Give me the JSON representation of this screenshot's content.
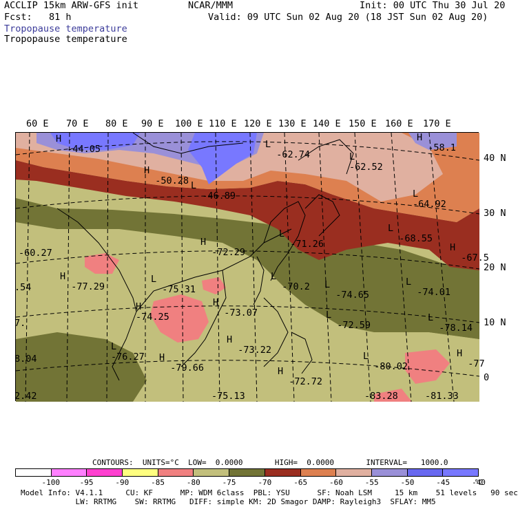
{
  "header": {
    "title_left": "ACCLIP 15km ARW-GFS init",
    "forecast": "Fcst:   81 h",
    "center": "NCAR/MMM",
    "init": "Init: 00 UTC Thu 30 Jul 20",
    "valid": "Valid: 09 UTC Sun 02 Aug 20 (18 JST Sun 02 Aug 20)",
    "field_1": "Tropopause temperature",
    "field_2": "Tropopause temperature"
  },
  "map": {
    "lon_labels": [
      "60 E",
      "70 E",
      "80 E",
      "90 E",
      "100 E",
      "110 E",
      "120 E",
      "130 E",
      "140 E",
      "150 E",
      "160 E",
      "170 E"
    ],
    "lat_labels": [
      "40 N",
      "30 N",
      "20 N",
      "10 N",
      "0"
    ],
    "annotations": [
      {
        "letter": "H",
        "value": "-44.05"
      },
      {
        "letter": "H",
        "value": "-50.28"
      },
      {
        "letter": "L",
        "value": "-46.89"
      },
      {
        "letter": "L",
        "value": "-62.74"
      },
      {
        "letter": "L",
        "value": "-62.52"
      },
      {
        "letter": "H",
        "value": "-58.1"
      },
      {
        "letter": "L",
        "value": "-64.92"
      },
      {
        "letter": "L",
        "value": "-68.55"
      },
      {
        "letter": "H",
        "value": "-67.5"
      },
      {
        "letter": "L",
        "value": "-71.26"
      },
      {
        "letter": "H",
        "value": "-72.29"
      },
      {
        "letter": "",
        "value": "-60.27"
      },
      {
        "letter": "H",
        "value": "-77.29"
      },
      {
        "letter": "",
        "value": ".54"
      },
      {
        "letter": "L",
        "value": "-75.31"
      },
      {
        "letter": "L",
        "value": "-70.2"
      },
      {
        "letter": "L",
        "value": "-74.65"
      },
      {
        "letter": "L",
        "value": "-74.01"
      },
      {
        "letter": "H",
        "value": "-73.07"
      },
      {
        "letter": "H",
        "value": "-74.25"
      },
      {
        "letter": "",
        "value": "7."
      },
      {
        "letter": "L",
        "value": "-72.59"
      },
      {
        "letter": "L",
        "value": "-78.14"
      },
      {
        "letter": "L",
        "value": "-76.27"
      },
      {
        "letter": "H",
        "value": "-73.22"
      },
      {
        "letter": "",
        "value": "8.04"
      },
      {
        "letter": "H",
        "value": "-79.66"
      },
      {
        "letter": "L",
        "value": "-80.02"
      },
      {
        "letter": "H",
        "value": "-77"
      },
      {
        "letter": "H",
        "value": "-72.72"
      },
      {
        "letter": "",
        "value": "-75.13"
      },
      {
        "letter": "",
        "value": "-83.28"
      },
      {
        "letter": "",
        "value": "-81.33"
      },
      {
        "letter": "",
        "value": "2.42"
      }
    ]
  },
  "legend": {
    "contours_line": "CONTOURS:  UNITS=°C  LOW=  0.0000       HIGH=  0.0000       INTERVAL=   1000.0",
    "colors": [
      "#ffffff",
      "#ff80ff",
      "#ff40d0",
      "#ffff80",
      "#f08080",
      "#c2bf7c",
      "#727436",
      "#9a2e20",
      "#dd8050",
      "#e0b0a0",
      "#9a90d8",
      "#6868f0",
      "#7878ff"
    ],
    "labels": [
      "-100",
      "-95",
      "-90",
      "-85",
      "-80",
      "-75",
      "-70",
      "-65",
      "-60",
      "-55",
      "-50",
      "-45",
      "-40"
    ],
    "unit": "°C"
  },
  "footer": {
    "line1": "Model Info: V4.1.1     CU: KF      MP: WDM 6class  PBL: YSU      SF: Noah LSM     15 km    51 levels   90 sec",
    "line2": "            LW: RRTMG    SW: RRTMG   DIFF: simple KM: 2D Smagor DAMP: Rayleigh3  SFLAY: MM5"
  }
}
